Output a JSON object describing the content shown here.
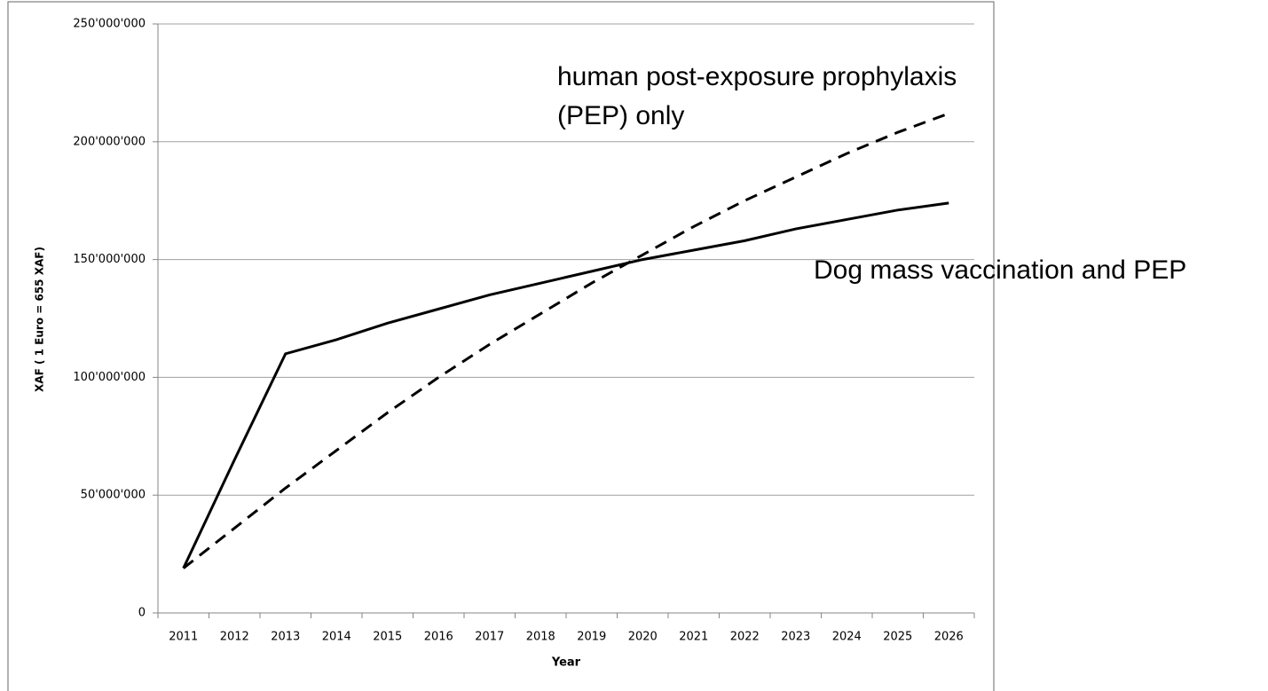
{
  "chart_data": {
    "type": "line",
    "xlabel": "Year",
    "ylabel": "XAF ( 1 Euro = 655 XAF)",
    "categories": [
      "2011",
      "2012",
      "2013",
      "2014",
      "2015",
      "2016",
      "2017",
      "2018",
      "2019",
      "2020",
      "2021",
      "2022",
      "2023",
      "2024",
      "2025",
      "2026"
    ],
    "series": [
      {
        "name": "Dog mass vaccination and PEP",
        "color": "#000000",
        "dash": "solid",
        "values": [
          19000000,
          65000000,
          110000000,
          116000000,
          123000000,
          129000000,
          135000000,
          140000000,
          145000000,
          150000000,
          154000000,
          158000000,
          163000000,
          167000000,
          171000000,
          174000000
        ]
      },
      {
        "name": "human post-exposure prophylaxis (PEP) only",
        "color": "#000000",
        "dash": "dashed",
        "values": [
          19000000,
          36000000,
          53000000,
          69000000,
          85000000,
          100000000,
          114000000,
          127000000,
          140000000,
          152000000,
          164000000,
          175000000,
          185000000,
          195000000,
          204000000,
          212000000
        ]
      }
    ],
    "ylim": [
      0,
      250000000
    ],
    "yticks": [
      0,
      {
        "value": 50000000,
        "label": "50'000'000"
      },
      {
        "value": 100000000,
        "label": "100'000'000"
      },
      {
        "value": 150000000,
        "label": "150'000'000"
      },
      {
        "value": 200000000,
        "label": "200'000'000"
      },
      {
        "value": 250000000,
        "label": "250'000'000"
      }
    ],
    "grid": true
  }
}
